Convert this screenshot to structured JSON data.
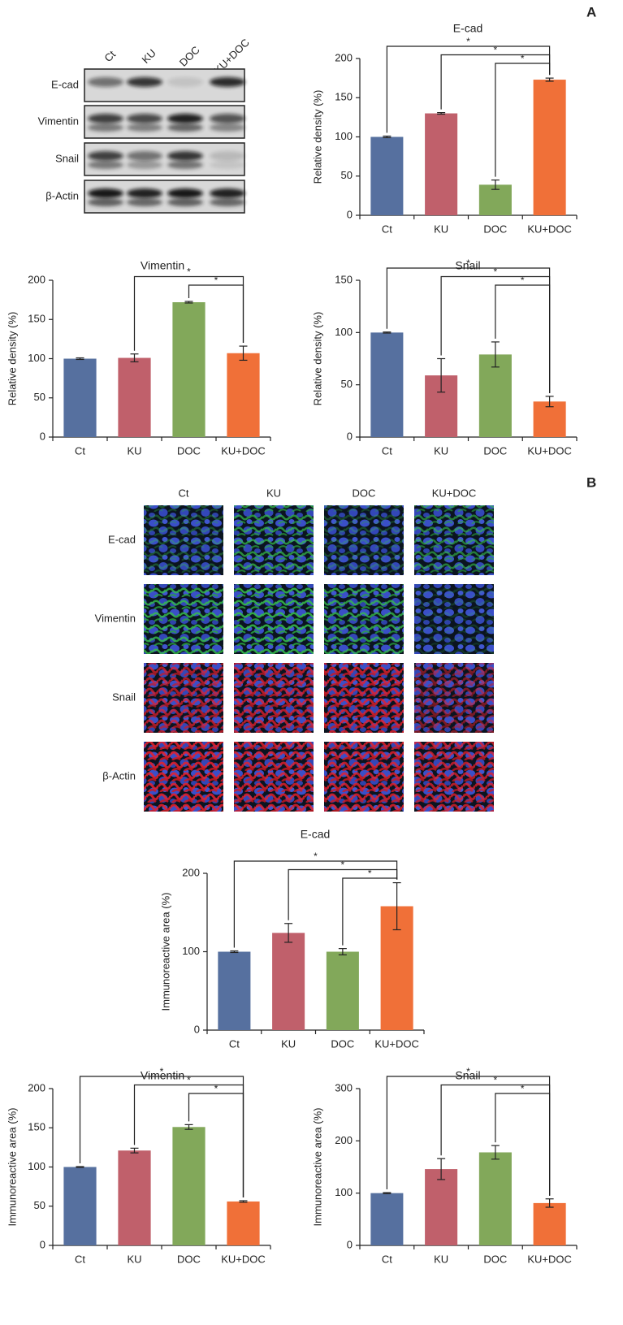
{
  "panel_labels": [
    "A",
    "B"
  ],
  "blot": {
    "columns": [
      "Ct",
      "KU",
      "DOC",
      "KU+DOC"
    ],
    "rows": [
      "E-cad",
      "Vimentin",
      "Snail",
      "β-Actin"
    ]
  },
  "if_images": {
    "columns": [
      "Ct",
      "KU",
      "DOC",
      "KU+DOC"
    ],
    "rows": [
      "E-cad",
      "Vimentin",
      "Snail",
      "β-Actin"
    ]
  },
  "chart_data": [
    {
      "type": "bar",
      "title": "E-cad",
      "ylabel": "Relative density (%)",
      "categories": [
        "Ct",
        "KU",
        "DOC",
        "KU+DOC"
      ],
      "values": [
        100,
        130,
        39,
        173
      ],
      "errors": [
        1,
        1,
        6,
        2
      ],
      "colors": [
        "#56709f",
        "#c0606b",
        "#82a85a",
        "#f07038"
      ],
      "ylim": [
        0,
        200
      ],
      "yticks": [
        0,
        50,
        100,
        150,
        200
      ],
      "annotations": [
        {
          "label": "*",
          "between": [
            "Ct",
            "KU+DOC"
          ]
        },
        {
          "label": "*",
          "between": [
            "KU",
            "KU+DOC"
          ]
        },
        {
          "label": "*",
          "between": [
            "DOC",
            "KU+DOC"
          ]
        }
      ]
    },
    {
      "type": "bar",
      "title": "Vimentin",
      "ylabel": "Relative density (%)",
      "categories": [
        "Ct",
        "KU",
        "DOC",
        "KU+DOC"
      ],
      "values": [
        100,
        101,
        172,
        107
      ],
      "errors": [
        1,
        5,
        1,
        9
      ],
      "colors": [
        "#56709f",
        "#c0606b",
        "#82a85a",
        "#f07038"
      ],
      "ylim": [
        0,
        200
      ],
      "yticks": [
        0,
        50,
        100,
        150,
        200
      ],
      "annotations": [
        {
          "label": "*",
          "between": [
            "KU",
            "KU+DOC"
          ]
        },
        {
          "label": "*",
          "between": [
            "DOC",
            "KU+DOC"
          ]
        }
      ]
    },
    {
      "type": "bar",
      "title": "Snail",
      "ylabel": "Relative density (%)",
      "categories": [
        "Ct",
        "KU",
        "DOC",
        "KU+DOC"
      ],
      "values": [
        100,
        59,
        79,
        34
      ],
      "errors": [
        0.5,
        16,
        12,
        5
      ],
      "colors": [
        "#56709f",
        "#c0606b",
        "#82a85a",
        "#f07038"
      ],
      "ylim": [
        0,
        150
      ],
      "yticks": [
        0,
        50,
        100,
        150
      ],
      "annotations": [
        {
          "label": "*",
          "between": [
            "Ct",
            "KU+DOC"
          ]
        },
        {
          "label": "*",
          "between": [
            "KU",
            "KU+DOC"
          ]
        },
        {
          "label": "*",
          "between": [
            "DOC",
            "KU+DOC"
          ]
        }
      ]
    },
    {
      "type": "bar",
      "title": "E-cad",
      "ylabel": "Immunoreactive area (%)",
      "categories": [
        "Ct",
        "KU",
        "DOC",
        "KU+DOC"
      ],
      "values": [
        100,
        124,
        100,
        158
      ],
      "errors": [
        1,
        12,
        4,
        30
      ],
      "colors": [
        "#56709f",
        "#c0606b",
        "#82a85a",
        "#f07038"
      ],
      "ylim": [
        0,
        200
      ],
      "yticks": [
        0,
        100,
        200
      ],
      "annotations": [
        {
          "label": "*",
          "between": [
            "Ct",
            "KU+DOC"
          ]
        },
        {
          "label": "*",
          "between": [
            "KU",
            "KU+DOC"
          ]
        },
        {
          "label": "*",
          "between": [
            "DOC",
            "KU+DOC"
          ]
        }
      ]
    },
    {
      "type": "bar",
      "title": "Vimentin",
      "ylabel": "Immunoreactive area (%)",
      "categories": [
        "Ct",
        "KU",
        "DOC",
        "KU+DOC"
      ],
      "values": [
        100,
        121,
        151,
        56
      ],
      "errors": [
        0.5,
        3,
        3,
        1
      ],
      "colors": [
        "#56709f",
        "#c0606b",
        "#82a85a",
        "#f07038"
      ],
      "ylim": [
        0,
        200
      ],
      "yticks": [
        0,
        50,
        100,
        150,
        200
      ],
      "annotations": [
        {
          "label": "*",
          "between": [
            "Ct",
            "KU+DOC"
          ]
        },
        {
          "label": "*",
          "between": [
            "KU",
            "KU+DOC"
          ]
        },
        {
          "label": "*",
          "between": [
            "DOC",
            "KU+DOC"
          ]
        }
      ]
    },
    {
      "type": "bar",
      "title": "Snail",
      "ylabel": "Immunoreactive area (%)",
      "categories": [
        "Ct",
        "KU",
        "DOC",
        "KU+DOC"
      ],
      "values": [
        100,
        146,
        178,
        81
      ],
      "errors": [
        1,
        20,
        13,
        8
      ],
      "colors": [
        "#56709f",
        "#c0606b",
        "#82a85a",
        "#f07038"
      ],
      "ylim": [
        0,
        300
      ],
      "yticks": [
        0,
        100,
        200,
        300
      ],
      "annotations": [
        {
          "label": "*",
          "between": [
            "Ct",
            "KU+DOC"
          ]
        },
        {
          "label": "*",
          "between": [
            "KU",
            "KU+DOC"
          ]
        },
        {
          "label": "*",
          "between": [
            "DOC",
            "KU+DOC"
          ]
        }
      ]
    }
  ]
}
